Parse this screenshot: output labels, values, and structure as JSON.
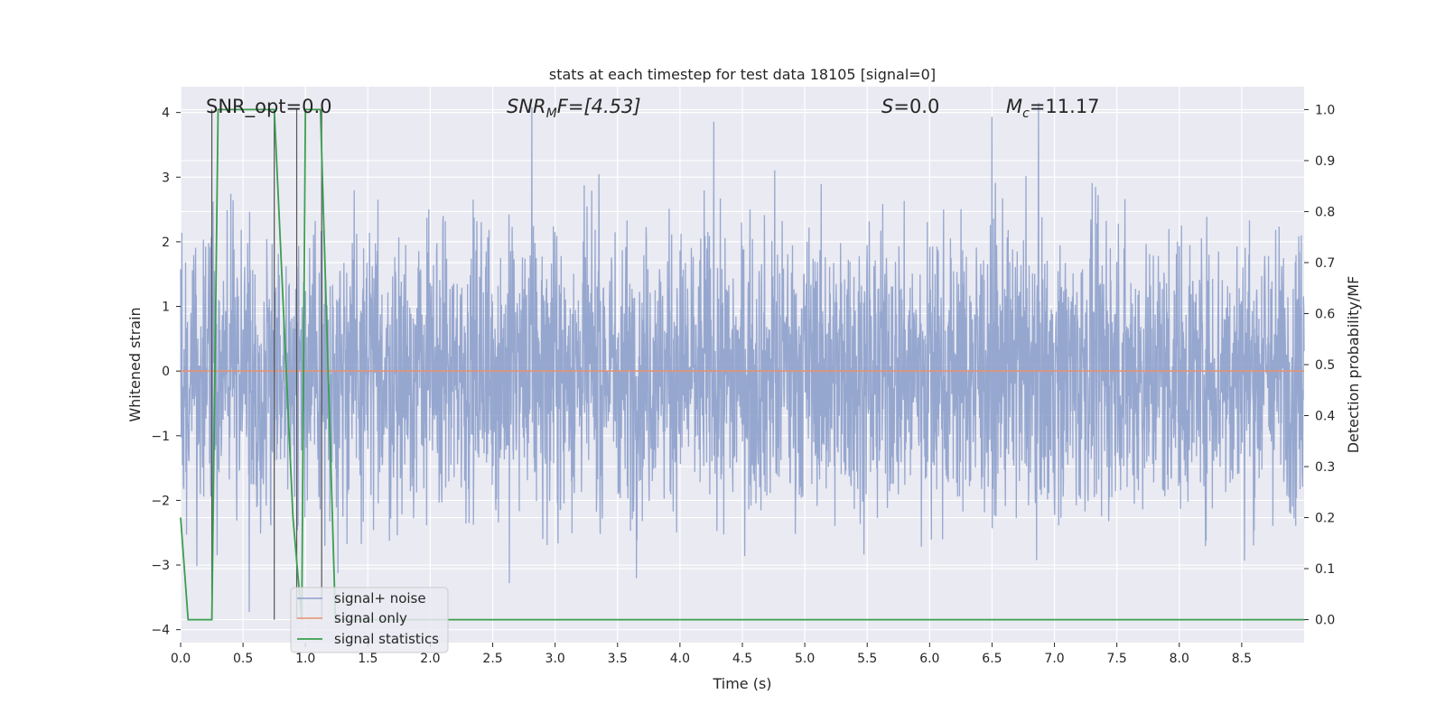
{
  "chart_data": {
    "type": "line",
    "title": "stats at each timestep for test data 18105 [signal=0]",
    "xlabel": "Time (s)",
    "ylabel": "Whitened strain",
    "ylabel_right": "Detection probability/MF",
    "xlim": [
      0.0,
      9.0
    ],
    "ylim": [
      -4.2,
      4.4
    ],
    "ylim_right": [
      -0.045,
      1.045
    ],
    "x_ticks": [
      "0.0",
      "0.5",
      "1.0",
      "1.5",
      "2.0",
      "2.5",
      "3.0",
      "3.5",
      "4.0",
      "4.5",
      "5.0",
      "5.5",
      "6.0",
      "6.5",
      "7.0",
      "7.5",
      "8.0",
      "8.5"
    ],
    "y_ticks": [
      "4",
      "3",
      "2",
      "1",
      "0",
      "−1",
      "−2",
      "−3",
      "−4"
    ],
    "y_ticks_right": [
      "1.0",
      "0.9",
      "0.8",
      "0.7",
      "0.6",
      "0.5",
      "0.4",
      "0.3",
      "0.2",
      "0.1",
      "0.0"
    ],
    "grid": true,
    "legend_placement": "lower-left",
    "annotations": {
      "snr_opt": "SNR_opt=0.0",
      "snr_mf_base": "SNR",
      "snr_mf_sub": "M",
      "snr_mf_rest": "F=[4.53]",
      "s_base": "S",
      "s_rest": "=0.0",
      "mc_base": "M",
      "mc_sub": "c",
      "mc_rest": "=11.17"
    },
    "series": [
      {
        "name": "signal+ noise",
        "color": "#8da0cb",
        "description_values": "whitened strain noise, envelope roughly between -3.6 and 4.0",
        "amplitude": 1.7
      },
      {
        "name": "signal only",
        "color": "#e8916c",
        "values_const": 0.0
      },
      {
        "name": "signal statistics",
        "color": "#3b9e4f",
        "axis": "right",
        "x": [
          0.0,
          0.06,
          0.25,
          0.3,
          0.72,
          0.75,
          0.9,
          0.97,
          1.0,
          1.12,
          1.24,
          9.0
        ],
        "values": [
          0.2,
          0.0,
          0.0,
          1.0,
          1.0,
          1.0,
          0.2,
          0.0,
          1.0,
          1.0,
          0.0,
          0.0
        ]
      }
    ],
    "vlines": [
      0.25,
      0.75,
      0.93,
      1.13
    ]
  }
}
